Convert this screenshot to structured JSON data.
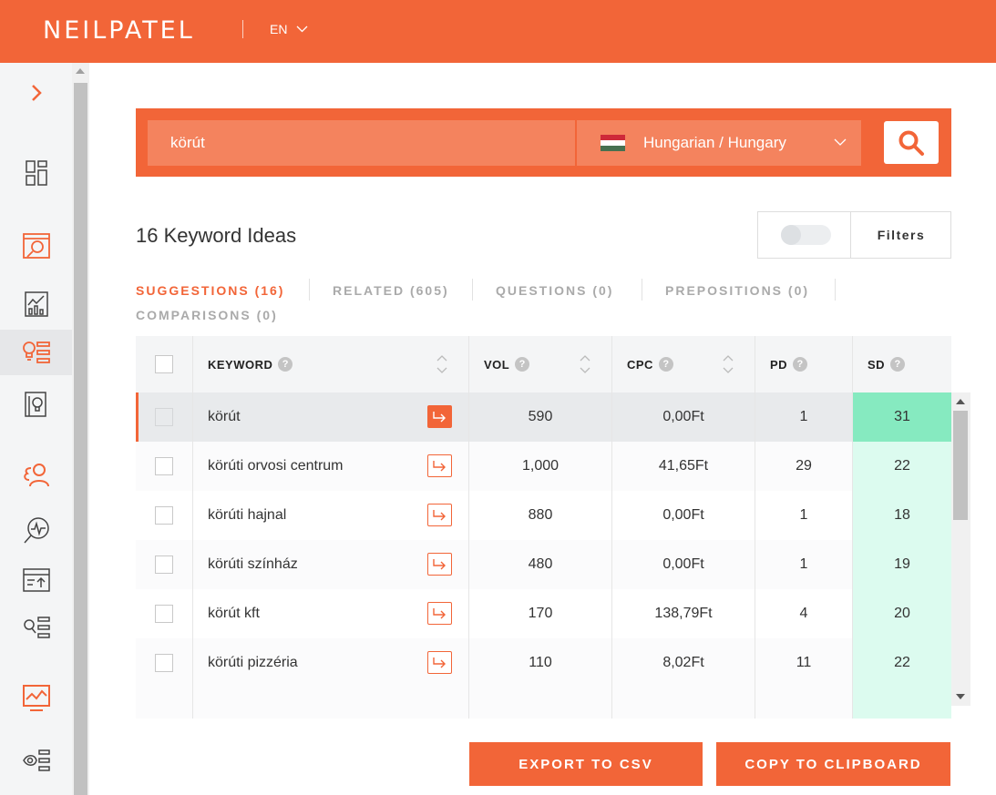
{
  "header": {
    "logo": "NEILPATEL",
    "language": "EN"
  },
  "sidebar": {
    "items": [
      {
        "icon": "chevron-right-icon"
      },
      {
        "icon": "dashboard-icon"
      },
      {
        "icon": "site-audit-icon"
      },
      {
        "icon": "traffic-analyzer-icon"
      },
      {
        "icon": "keyword-ideas-icon"
      },
      {
        "icon": "content-ideas-icon"
      },
      {
        "icon": "backlinks-icon"
      },
      {
        "icon": "rank-tracking-icon"
      },
      {
        "icon": "site-upload-icon"
      },
      {
        "icon": "keyword-list-icon"
      },
      {
        "icon": "analytics-icon"
      },
      {
        "icon": "view-list-icon"
      }
    ]
  },
  "search": {
    "keyword": "körút",
    "language_location": "Hungarian / Hungary"
  },
  "results": {
    "title": "16 Keyword Ideas",
    "filters_label": "Filters"
  },
  "tabs": [
    {
      "label": "SUGGESTIONS (16)",
      "active": true
    },
    {
      "label": "RELATED (605)",
      "active": false
    },
    {
      "label": "QUESTIONS (0)",
      "active": false
    },
    {
      "label": "PREPOSITIONS (0)",
      "active": false
    },
    {
      "label": "COMPARISONS (0)",
      "active": false
    }
  ],
  "table": {
    "columns": {
      "keyword": "KEYWORD",
      "vol": "VOL",
      "cpc": "CPC",
      "pd": "PD",
      "sd": "SD",
      "help": "?"
    },
    "rows": [
      {
        "keyword": "körút",
        "vol": "590",
        "cpc": "0,00Ft",
        "pd": "1",
        "sd": "31"
      },
      {
        "keyword": "körúti orvosi centrum",
        "vol": "1,000",
        "cpc": "41,65Ft",
        "pd": "29",
        "sd": "22"
      },
      {
        "keyword": "körúti hajnal",
        "vol": "880",
        "cpc": "0,00Ft",
        "pd": "1",
        "sd": "18"
      },
      {
        "keyword": "körúti színház",
        "vol": "480",
        "cpc": "0,00Ft",
        "pd": "1",
        "sd": "19"
      },
      {
        "keyword": "körút kft",
        "vol": "170",
        "cpc": "138,79Ft",
        "pd": "4",
        "sd": "20"
      },
      {
        "keyword": "körúti pizzéria",
        "vol": "110",
        "cpc": "8,02Ft",
        "pd": "11",
        "sd": "22"
      }
    ]
  },
  "actions": {
    "export": "EXPORT TO CSV",
    "copy": "COPY TO CLIPBOARD"
  },
  "colors": {
    "brand": "#f26538",
    "sd_high": "#86eac0",
    "sd_low": "#dcfbef"
  }
}
